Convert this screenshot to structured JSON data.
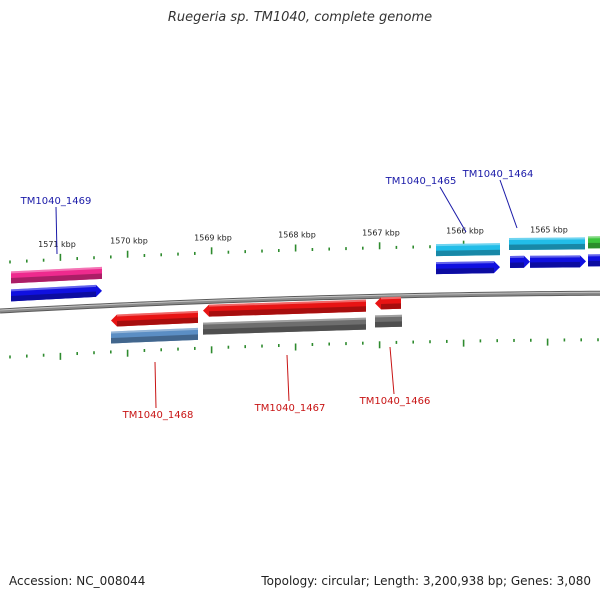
{
  "title": "Ruegeria sp. TM1040, complete genome",
  "footer": {
    "accession": "Accession: NC_008044",
    "summary": "Topology: circular; Length: 3,200,938 bp; Genes: 3,080"
  },
  "colors": {
    "backbone": "#8a8a8a",
    "tick": "#2e8b2e",
    "forward_label": "#1a1aa8",
    "reverse_label": "#c81414",
    "cds_reverse": "#e81414",
    "gene_reverse_a": "#5b8ec4",
    "gene_reverse_b": "#6e6e6e",
    "cds_forward": "#1010e0",
    "gene_forward_a": "#ee2a8e",
    "gene_forward_b": "#22bde8",
    "gene_forward_c": "#3cc43c"
  },
  "ticks": [
    {
      "label": "1571 kbp"
    },
    {
      "label": "1570 kbp"
    },
    {
      "label": "1569 kbp"
    },
    {
      "label": "1568 kbp"
    },
    {
      "label": "1567 kbp"
    },
    {
      "label": "1566 kbp"
    },
    {
      "label": "1565 kbp"
    }
  ],
  "genes": [
    {
      "name": "TM1040_1469",
      "strand": "+"
    },
    {
      "name": "TM1040_1465",
      "strand": "+"
    },
    {
      "name": "TM1040_1464",
      "strand": "+"
    },
    {
      "name": "TM1040_1468",
      "strand": "-"
    },
    {
      "name": "TM1040_1467",
      "strand": "-"
    },
    {
      "name": "TM1040_1466",
      "strand": "-"
    }
  ]
}
